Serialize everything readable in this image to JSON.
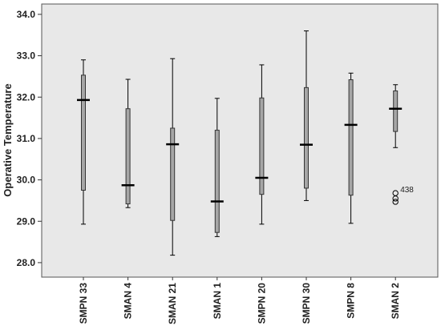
{
  "chart_data": {
    "type": "boxplot",
    "ylabel": "Operative Temperature",
    "xlabel": "",
    "ylim": [
      27.65,
      34.25
    ],
    "yticks": [
      "28.0",
      "29.0",
      "30.0",
      "31.0",
      "32.0",
      "33.0",
      "34.0"
    ],
    "grid": false,
    "categories": [
      "SMPN 33",
      "SMAN 4",
      "SMAN 21",
      "SMAN 1",
      "SMPN 20",
      "SMPN 30",
      "SMPN 8",
      "SMAN 2"
    ],
    "boxes": [
      {
        "min": 28.93,
        "q1": 29.75,
        "median": 31.93,
        "q3": 32.53,
        "max": 32.9
      },
      {
        "min": 29.33,
        "q1": 29.42,
        "median": 29.87,
        "q3": 31.72,
        "max": 32.43
      },
      {
        "min": 28.18,
        "q1": 29.02,
        "median": 30.86,
        "q3": 31.25,
        "max": 32.93
      },
      {
        "min": 28.63,
        "q1": 28.73,
        "median": 29.48,
        "q3": 31.2,
        "max": 31.97
      },
      {
        "min": 28.93,
        "q1": 29.65,
        "median": 30.05,
        "q3": 31.98,
        "max": 32.78
      },
      {
        "min": 29.5,
        "q1": 29.8,
        "median": 30.85,
        "q3": 32.23,
        "max": 33.6
      },
      {
        "min": 28.95,
        "q1": 29.63,
        "median": 31.33,
        "q3": 32.42,
        "max": 32.58
      },
      {
        "min": 30.78,
        "q1": 31.17,
        "median": 31.72,
        "q3": 32.15,
        "max": 32.3
      }
    ],
    "outliers": [
      {
        "category": "SMAN 2",
        "values": [
          29.68,
          29.55,
          29.47
        ],
        "label": "438"
      }
    ],
    "colors": {
      "plot_background": "#e8e8e8",
      "box_fill": "#a6a6a6",
      "line": "#000000"
    }
  }
}
